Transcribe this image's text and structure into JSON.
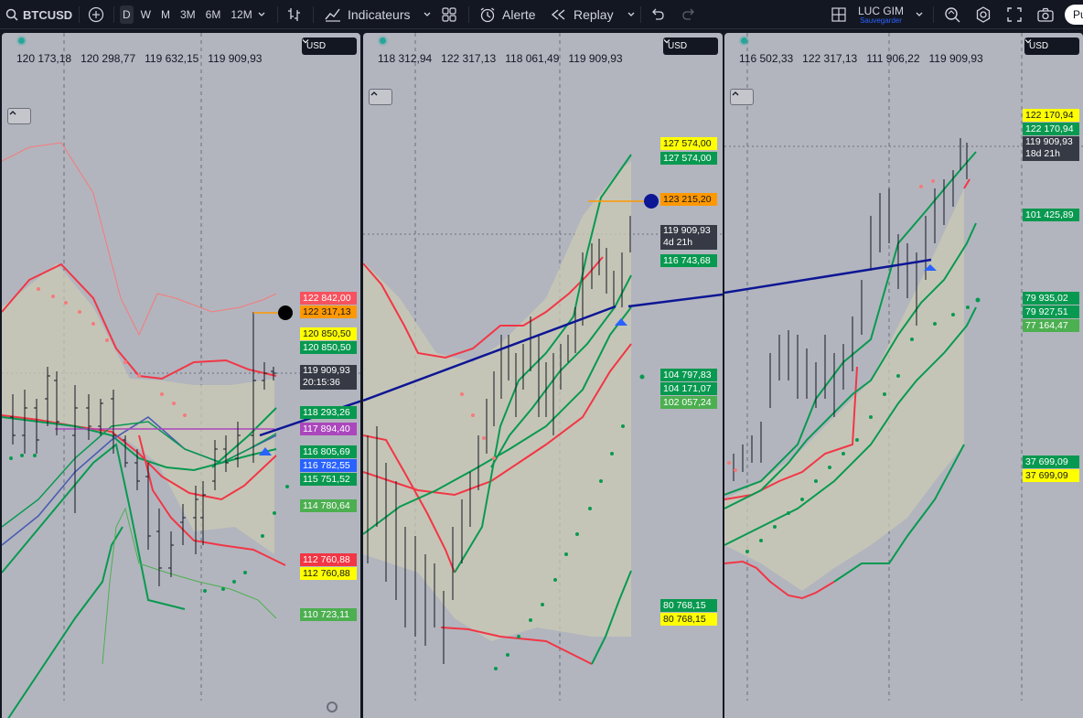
{
  "toolbar": {
    "symbol": "BTCUSD",
    "intervals": [
      "D",
      "W",
      "M",
      "3M",
      "6M",
      "12M"
    ],
    "active_interval": "D",
    "indicators_label": "Indicateurs",
    "alert_label": "Alerte",
    "replay_label": "Replay",
    "layout_name": "LUC GIM",
    "layout_status": "Sauvegarder",
    "publish_label": "Pu"
  },
  "panes": [
    {
      "currency": "USD",
      "ohlc": [
        "120 173,18",
        "120 298,77",
        "119 632,15",
        "119 909,93"
      ],
      "labels": [
        {
          "text": "122 842,00",
          "bg": "#f7525f",
          "fg": "#ffffff"
        },
        {
          "text": "122 317,13",
          "bg": "#ff9800",
          "fg": "#131722"
        },
        {
          "text": "120 850,50",
          "bg": "#ffff00",
          "fg": "#131722"
        },
        {
          "text": "120 850,50",
          "bg": "#089950",
          "fg": "#ffffff"
        },
        {
          "text": "119 909,93",
          "sub": "20:15:36",
          "bg": "#363a45",
          "fg": "#ffffff"
        },
        {
          "text": "118 293,26",
          "bg": "#089950",
          "fg": "#ffffff"
        },
        {
          "text": "117 894,40",
          "bg": "#ab47bc",
          "fg": "#ffffff"
        },
        {
          "text": "116 805,69",
          "bg": "#089950",
          "fg": "#ffffff"
        },
        {
          "text": "116 782,55",
          "bg": "#2962ff",
          "fg": "#ffffff"
        },
        {
          "text": "115 751,52",
          "bg": "#089950",
          "fg": "#ffffff"
        },
        {
          "text": "114 780,64",
          "bg": "#4caf50",
          "fg": "#ffffff"
        },
        {
          "text": "112 760,88",
          "bg": "#f23645",
          "fg": "#ffffff"
        },
        {
          "text": "112 760,88",
          "bg": "#ffff00",
          "fg": "#131722"
        },
        {
          "text": "110 723,11",
          "bg": "#4caf50",
          "fg": "#ffffff"
        }
      ]
    },
    {
      "currency": "USD",
      "ohlc": [
        "118 312,94",
        "122 317,13",
        "118 061,49",
        "119 909,93"
      ],
      "labels": [
        {
          "text": "127 574,00",
          "bg": "#ffff00",
          "fg": "#131722"
        },
        {
          "text": "127 574,00",
          "bg": "#089950",
          "fg": "#ffffff"
        },
        {
          "text": "123 215,20",
          "bg": "#ff9800",
          "fg": "#131722"
        },
        {
          "text": "119 909,93",
          "sub": "4d 21h",
          "bg": "#363a45",
          "fg": "#ffffff"
        },
        {
          "text": "116 743,68",
          "bg": "#089950",
          "fg": "#ffffff"
        },
        {
          "text": "104 797,83",
          "bg": "#089950",
          "fg": "#ffffff"
        },
        {
          "text": "104 171,07",
          "bg": "#089950",
          "fg": "#ffffff"
        },
        {
          "text": "102 057,24",
          "bg": "#4caf50",
          "fg": "#ffffff"
        },
        {
          "text": "80 768,15",
          "bg": "#089950",
          "fg": "#ffffff"
        },
        {
          "text": "80 768,15",
          "bg": "#ffff00",
          "fg": "#131722"
        }
      ]
    },
    {
      "currency": "USD",
      "ohlc": [
        "116 502,33",
        "122 317,13",
        "111 906,22",
        "119 909,93"
      ],
      "labels": [
        {
          "text": "122 170,94",
          "bg": "#ffff00",
          "fg": "#131722"
        },
        {
          "text": "122 170,94",
          "bg": "#089950",
          "fg": "#ffffff"
        },
        {
          "text": "119 909,93",
          "sub": "18d 21h",
          "bg": "#363a45",
          "fg": "#ffffff"
        },
        {
          "text": "101 425,89",
          "bg": "#089950",
          "fg": "#ffffff"
        },
        {
          "text": "79 935,02",
          "bg": "#089950",
          "fg": "#ffffff"
        },
        {
          "text": "79 927,51",
          "bg": "#089950",
          "fg": "#ffffff"
        },
        {
          "text": "77 164,47",
          "bg": "#4caf50",
          "fg": "#ffffff"
        },
        {
          "text": "37 699,09",
          "bg": "#089950",
          "fg": "#ffffff"
        },
        {
          "text": "37 699,09",
          "bg": "#ffff00",
          "fg": "#131722"
        }
      ]
    }
  ]
}
